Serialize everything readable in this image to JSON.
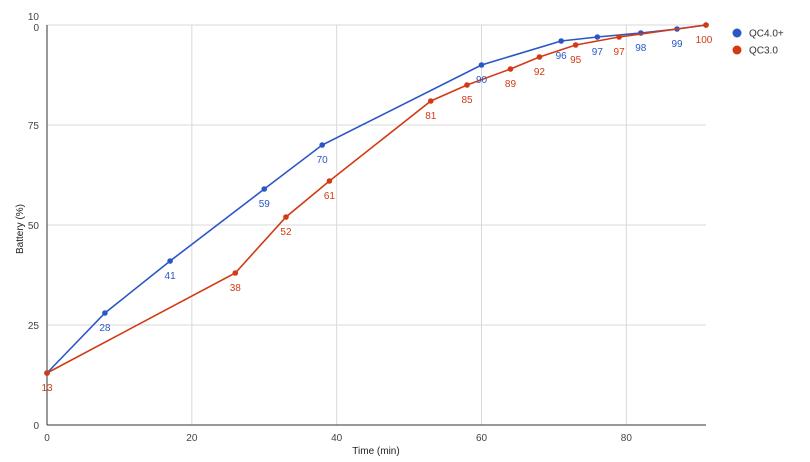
{
  "chart_data": {
    "type": "line",
    "title": "",
    "xlabel": "Time (min)",
    "ylabel": "Battery (%)",
    "xlim": [
      0,
      91
    ],
    "ylim": [
      0,
      100
    ],
    "x_ticks": [
      0,
      20,
      40,
      60,
      80
    ],
    "y_ticks": [
      "0",
      "25",
      "50",
      "75",
      "10\n0"
    ],
    "grid": true,
    "legend_position": "right",
    "series": [
      {
        "name": "QC4.0+",
        "color": "#2a56c6",
        "points": [
          {
            "x": 0,
            "y": 13
          },
          {
            "x": 8,
            "y": 28
          },
          {
            "x": 17,
            "y": 41
          },
          {
            "x": 30,
            "y": 59
          },
          {
            "x": 38,
            "y": 70
          },
          {
            "x": 60,
            "y": 90
          },
          {
            "x": 71,
            "y": 96
          },
          {
            "x": 76,
            "y": 97
          },
          {
            "x": 82,
            "y": 98
          },
          {
            "x": 87,
            "y": 99
          },
          {
            "x": 91,
            "y": 100
          }
        ],
        "labels": [
          "",
          "28",
          "41",
          "59",
          "70",
          "90",
          "96",
          "97",
          "98",
          "99",
          ""
        ]
      },
      {
        "name": "QC3.0",
        "color": "#d23a14",
        "points": [
          {
            "x": 0,
            "y": 13
          },
          {
            "x": 26,
            "y": 38
          },
          {
            "x": 33,
            "y": 52
          },
          {
            "x": 39,
            "y": 61
          },
          {
            "x": 53,
            "y": 81
          },
          {
            "x": 58,
            "y": 85
          },
          {
            "x": 64,
            "y": 89
          },
          {
            "x": 68,
            "y": 92
          },
          {
            "x": 73,
            "y": 95
          },
          {
            "x": 79,
            "y": 97
          },
          {
            "x": 91,
            "y": 100
          }
        ],
        "labels": [
          "13",
          "38",
          "52",
          "61",
          "81",
          "85",
          "89",
          "92",
          "95",
          "97",
          "100"
        ]
      }
    ]
  }
}
